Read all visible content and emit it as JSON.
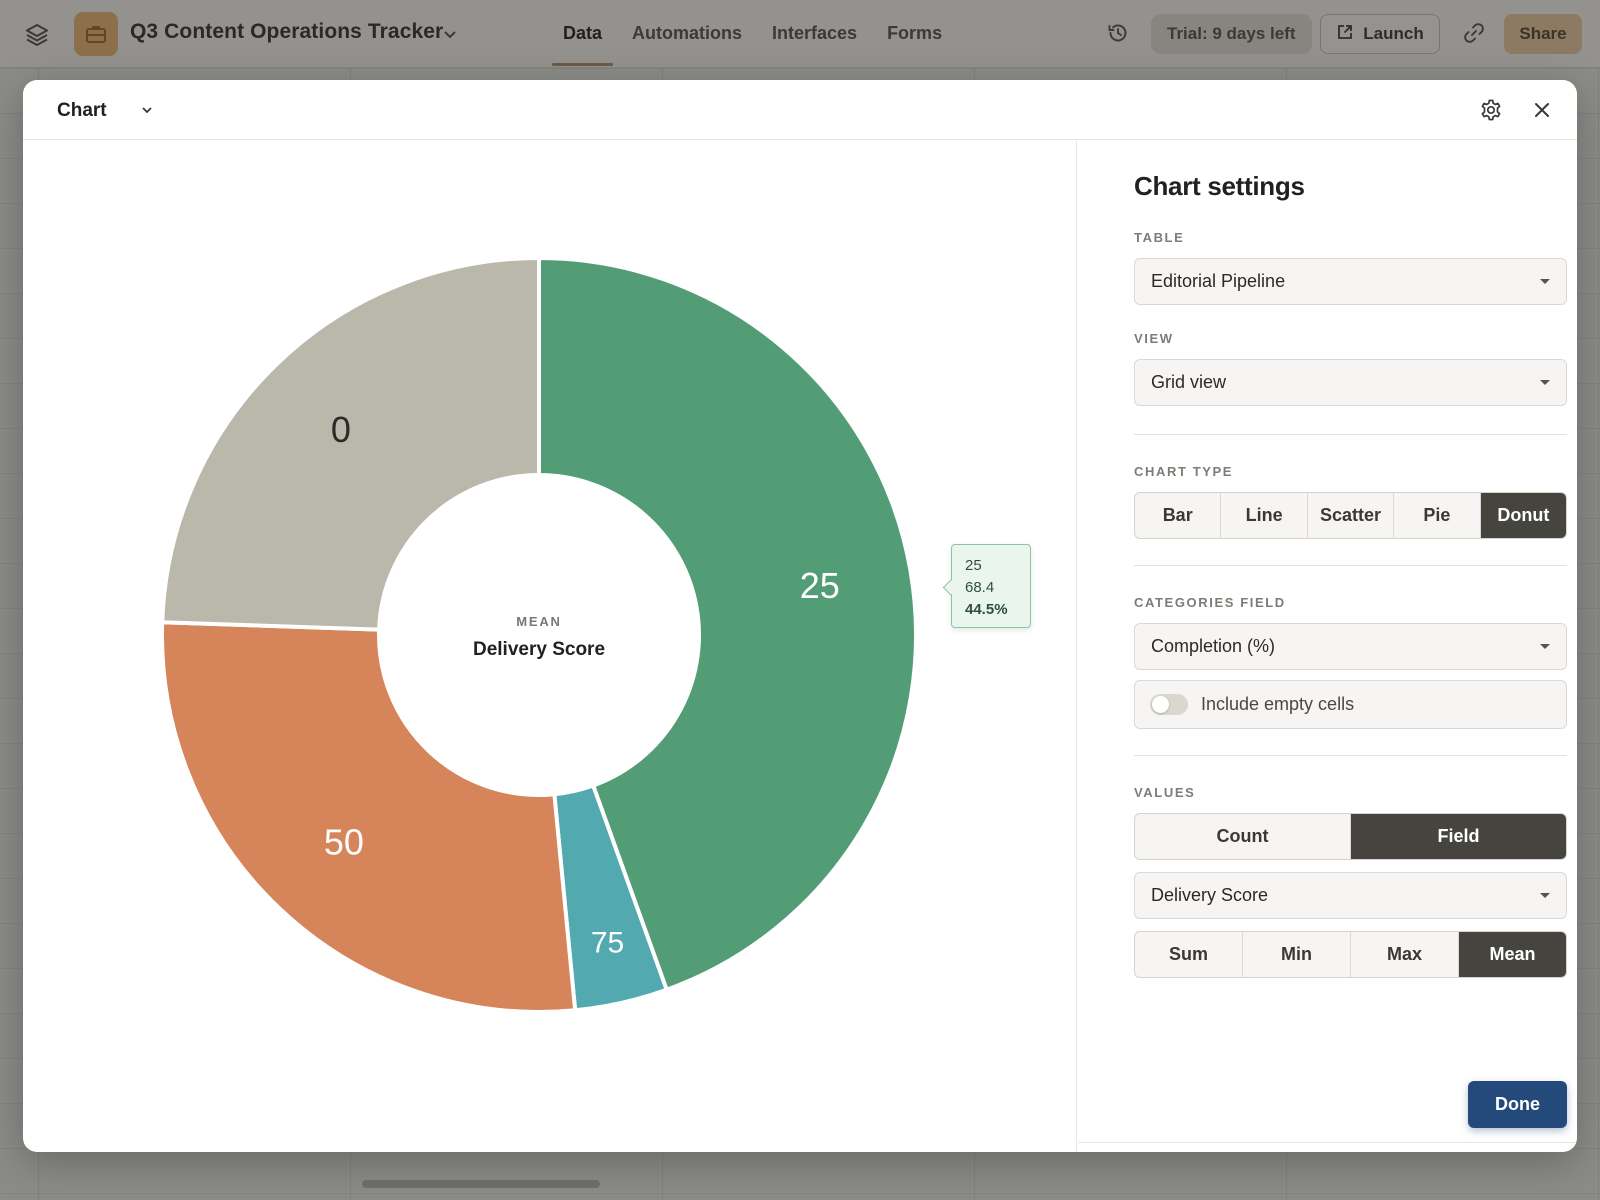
{
  "app": {
    "base_name": "Q3 Content Operations Tracker",
    "nav": [
      "Data",
      "Automations",
      "Interfaces",
      "Forms"
    ],
    "active_nav": "Data",
    "trial_label": "Trial: 9 days left",
    "launch_label": "Launch",
    "share_label": "Share",
    "icons": [
      "layers-icon",
      "briefcase-icon",
      "chevron-down-icon",
      "history-icon",
      "external-link-icon",
      "link-icon"
    ]
  },
  "modal": {
    "title": "Chart",
    "icons": [
      "gear-icon",
      "close-icon"
    ]
  },
  "chart": {
    "center_caption": "MEAN",
    "center_title": "Delivery Score",
    "tooltip": {
      "category": "25",
      "value": "68.4",
      "percent": "44.5%"
    }
  },
  "chart_data": {
    "type": "pie",
    "variant": "donut",
    "aggregation": "Mean",
    "value_field": "Delivery Score",
    "categories": [
      "25",
      "75",
      "50",
      "0"
    ],
    "values": [
      68.4,
      6.1,
      41.6,
      37.6
    ],
    "colors": [
      "#529d76",
      "#52aab0",
      "#d6845a",
      "#bab7ab"
    ],
    "highlighted": "25"
  },
  "settings": {
    "heading": "Chart settings",
    "table_label": "TABLE",
    "table_value": "Editorial Pipeline",
    "view_label": "VIEW",
    "view_value": "Grid view",
    "chart_type_label": "CHART TYPE",
    "chart_types": [
      "Bar",
      "Line",
      "Scatter",
      "Pie",
      "Donut"
    ],
    "chart_type_selected": "Donut",
    "categories_label": "CATEGORIES FIELD",
    "categories_value": "Completion (%)",
    "include_empty_label": "Include empty cells",
    "include_empty_on": false,
    "values_label": "VALUES",
    "value_modes": [
      "Count",
      "Field"
    ],
    "value_mode_selected": "Field",
    "value_field": "Delivery Score",
    "aggregations": [
      "Sum",
      "Min",
      "Max",
      "Mean"
    ],
    "aggregation_selected": "Mean",
    "done_label": "Done"
  }
}
